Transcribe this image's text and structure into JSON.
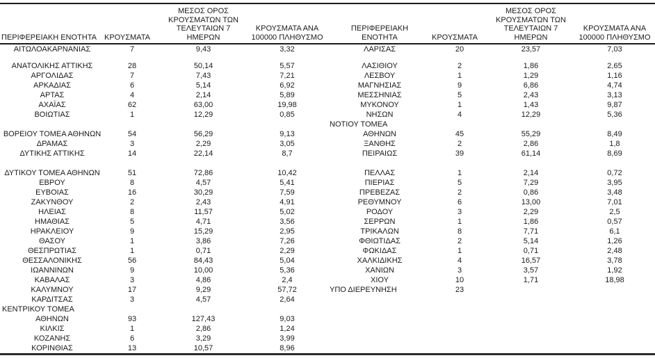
{
  "headers": {
    "region_left": "ΠΕΡΙΦΕΡΕΙΑΚΗ ΕΝΟΤΗΤΑ",
    "region_right": "ΠΕΡΙΦΕΡΕΙΑΚΗ\nΕΝΟΤΗΤΑ",
    "cases": "ΚΡΟΥΣΜΑΤΑ",
    "avg7": "ΜΕΣΟΣ ΟΡΟΣ\nΚΡΟΥΣΜΑΤΩΝ ΤΩΝ\nΤΕΛΕΥΤΑΙΩΝ 7\nΗΜΕΡΩΝ",
    "per100k": "ΚΡΟΥΣΜΑΤΑ ΑΝΑ\n100000 ΠΛΗΘΥΣΜΟ"
  },
  "rows": [
    {
      "left": {
        "name": "ΑΙΤΩΛΟΑΚΑΡΝΑΝΙΑΣ",
        "cases": "7",
        "avg": "9,43",
        "per100k": "3,32"
      },
      "right": {
        "name": "ΛΑΡΙΣΑΣ",
        "cases": "20",
        "avg": "23,57",
        "per100k": "7,03"
      }
    },
    {
      "left": null,
      "right": null,
      "h": 10
    },
    {
      "left": {
        "name": "ΑΝΑΤΟΛΙΚΗΣ ΑΤΤΙΚΗΣ",
        "cases": "28",
        "avg": "50,14",
        "per100k": "5,57"
      },
      "right": {
        "name": "ΛΑΣΙΘΙΟΥ",
        "cases": "2",
        "avg": "1,86",
        "per100k": "2,65"
      }
    },
    {
      "left": {
        "name": "ΑΡΓΟΛΙΔΑΣ",
        "cases": "7",
        "avg": "7,43",
        "per100k": "7,21"
      },
      "right": {
        "name": "ΛΕΣΒΟΥ",
        "cases": "1",
        "avg": "1,29",
        "per100k": "1,16"
      }
    },
    {
      "left": {
        "name": "ΑΡΚΑΔΙΑΣ",
        "cases": "6",
        "avg": "5,14",
        "per100k": "6,92"
      },
      "right": {
        "name": "ΜΑΓΝΗΣΙΑΣ",
        "cases": "9",
        "avg": "6,86",
        "per100k": "4,74"
      }
    },
    {
      "left": {
        "name": "ΑΡΤΑΣ",
        "cases": "4",
        "avg": "2,14",
        "per100k": "5,89"
      },
      "right": {
        "name": "ΜΕΣΣΗΝΙΑΣ",
        "cases": "5",
        "avg": "2,43",
        "per100k": "3,13"
      }
    },
    {
      "left": {
        "name": "ΑΧΑΪΑΣ",
        "cases": "62",
        "avg": "63,00",
        "per100k": "19,98"
      },
      "right": {
        "name": "ΜΥΚΟΝΟΥ",
        "cases": "1",
        "avg": "1,43",
        "per100k": "9,87"
      }
    },
    {
      "left": {
        "name": "ΒΟΙΩΤΙΑΣ",
        "cases": "1",
        "avg": "12,29",
        "per100k": "0,85"
      },
      "right": {
        "name": "ΝΗΣΩΝ",
        "cases": "4",
        "avg": "12,29",
        "per100k": "5,36"
      }
    },
    {
      "left": null,
      "right": {
        "name": "ΝΟΤΙΟΥ ΤΟΜΕΑ",
        "cases": "",
        "avg": "",
        "per100k": "",
        "align": "left"
      }
    },
    {
      "left": {
        "name": "ΒΟΡΕΙΟΥ ΤΟΜΕΑ ΑΘΗΝΩΝ",
        "cases": "54",
        "avg": "56,29",
        "per100k": "9,13"
      },
      "right": {
        "name": "ΑΘΗΝΩΝ",
        "cases": "45",
        "avg": "55,29",
        "per100k": "8,49"
      }
    },
    {
      "left": {
        "name": "ΔΡΑΜΑΣ",
        "cases": "3",
        "avg": "2,29",
        "per100k": "3,05"
      },
      "right": {
        "name": "ΞΑΝΘΗΣ",
        "cases": "2",
        "avg": "2,86",
        "per100k": "1,8"
      }
    },
    {
      "left": {
        "name": "ΔΥΤΙΚΗΣ ΑΤΤΙΚΗΣ",
        "cases": "14",
        "avg": "22,14",
        "per100k": "8,7"
      },
      "right": {
        "name": "ΠΕΙΡΑΙΩΣ",
        "cases": "39",
        "avg": "61,14",
        "per100k": "8,69"
      }
    },
    {
      "left": null,
      "right": null
    },
    {
      "left": {
        "name": "ΔΥΤΙΚΟΥ ΤΟΜΕΑ ΑΘΗΝΩΝ",
        "cases": "51",
        "avg": "72,86",
        "per100k": "10,42"
      },
      "right": {
        "name": "ΠΕΛΛΑΣ",
        "cases": "1",
        "avg": "2,14",
        "per100k": "0,72"
      }
    },
    {
      "left": {
        "name": "ΕΒΡΟΥ",
        "cases": "8",
        "avg": "4,57",
        "per100k": "5,41"
      },
      "right": {
        "name": "ΠΙΕΡΙΑΣ",
        "cases": "5",
        "avg": "7,29",
        "per100k": "3,95"
      }
    },
    {
      "left": {
        "name": "ΕΥΒΟΙΑΣ",
        "cases": "16",
        "avg": "30,29",
        "per100k": "7,59"
      },
      "right": {
        "name": "ΠΡΕΒΕΖΑΣ",
        "cases": "2",
        "avg": "0,86",
        "per100k": "3,48"
      }
    },
    {
      "left": {
        "name": "ΖΑΚΥΝΘΟΥ",
        "cases": "2",
        "avg": "2,43",
        "per100k": "4,91"
      },
      "right": {
        "name": "ΡΕΘΥΜΝΟΥ",
        "cases": "6",
        "avg": "13,00",
        "per100k": "7,01"
      }
    },
    {
      "left": {
        "name": "ΗΛΕΙΑΣ",
        "cases": "8",
        "avg": "11,57",
        "per100k": "5,02"
      },
      "right": {
        "name": "ΡΟΔΟΥ",
        "cases": "3",
        "avg": "2,29",
        "per100k": "2,5"
      }
    },
    {
      "left": {
        "name": "ΗΜΑΘΙΑΣ",
        "cases": "5",
        "avg": "4,71",
        "per100k": "3,56"
      },
      "right": {
        "name": "ΣΕΡΡΩΝ",
        "cases": "1",
        "avg": "1,86",
        "per100k": "0,57"
      }
    },
    {
      "left": {
        "name": "ΗΡΑΚΛΕΙΟΥ",
        "cases": "9",
        "avg": "15,29",
        "per100k": "2,95"
      },
      "right": {
        "name": "ΤΡΙΚΑΛΩΝ",
        "cases": "8",
        "avg": "7,71",
        "per100k": "6,1"
      }
    },
    {
      "left": {
        "name": "ΘΑΣΟΥ",
        "cases": "1",
        "avg": "3,86",
        "per100k": "7,26"
      },
      "right": {
        "name": "ΦΘΙΩΤΙΔΑΣ",
        "cases": "2",
        "avg": "5,14",
        "per100k": "1,26"
      }
    },
    {
      "left": {
        "name": "ΘΕΣΠΡΩΤΙΑΣ",
        "cases": "1",
        "avg": "0,71",
        "per100k": "2,29"
      },
      "right": {
        "name": "ΦΩΚΙΔΑΣ",
        "cases": "1",
        "avg": "0,71",
        "per100k": "2,48"
      }
    },
    {
      "left": {
        "name": "ΘΕΣΣΑΛΟΝΙΚΗΣ",
        "cases": "56",
        "avg": "84,43",
        "per100k": "5,04"
      },
      "right": {
        "name": "ΧΑΛΚΙΔΙΚΗΣ",
        "cases": "4",
        "avg": "16,57",
        "per100k": "3,78"
      }
    },
    {
      "left": {
        "name": "ΙΩΑΝΝΙΝΩΝ",
        "cases": "9",
        "avg": "10,00",
        "per100k": "5,36"
      },
      "right": {
        "name": "ΧΑΝΙΩΝ",
        "cases": "3",
        "avg": "3,57",
        "per100k": "1,92"
      }
    },
    {
      "left": {
        "name": "ΚΑΒΑΛΑΣ",
        "cases": "3",
        "avg": "4,86",
        "per100k": "2,4"
      },
      "right": {
        "name": "ΧΙΟΥ",
        "cases": "10",
        "avg": "1,71",
        "per100k": "18,98"
      }
    },
    {
      "left": {
        "name": "ΚΑΛΥΜΝΟΥ",
        "cases": "17",
        "avg": "9,29",
        "per100k": "57,72"
      },
      "right": {
        "name": "ΥΠΟ ΔΙΕΡΕΥΝΗΣΗ",
        "cases": "23",
        "avg": "",
        "per100k": "",
        "align": "left"
      }
    },
    {
      "left": {
        "name": "ΚΑΡΔΙΤΣΑΣ",
        "cases": "3",
        "avg": "4,57",
        "per100k": "2,64"
      },
      "right": null
    },
    {
      "left": {
        "name": "ΚΕΝΤΡΙΚΟΥ ΤΟΜΕΑ",
        "cases": "",
        "avg": "",
        "per100k": "",
        "align": "left"
      },
      "right": null
    },
    {
      "left": {
        "name": "ΑΘΗΝΩΝ",
        "cases": "93",
        "avg": "127,43",
        "per100k": "9,03"
      },
      "right": null
    },
    {
      "left": {
        "name": "ΚΙΛΚΙΣ",
        "cases": "1",
        "avg": "2,86",
        "per100k": "1,24"
      },
      "right": null
    },
    {
      "left": {
        "name": "ΚΟΖΑΝΗΣ",
        "cases": "6",
        "avg": "3,29",
        "per100k": "3,99"
      },
      "right": null
    },
    {
      "left": {
        "name": "ΚΟΡΙΝΘΙΑΣ",
        "cases": "13",
        "avg": "10,57",
        "per100k": "8,96"
      },
      "right": null
    }
  ]
}
